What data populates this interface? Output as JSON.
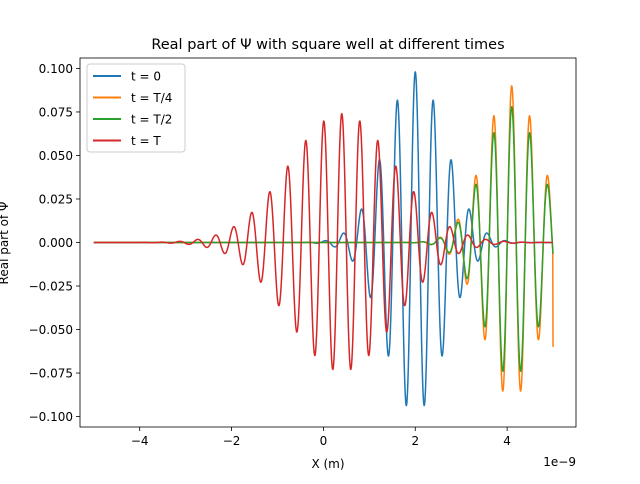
{
  "chart_data": {
    "type": "line",
    "title": "Real part of Ψ with square well at different times",
    "xlabel": "X (m)",
    "ylabel": "Real part of Ψ",
    "x_scale_label": "1e−9",
    "xlim": [
      -5.3e-09,
      5.5e-09
    ],
    "ylim": [
      -0.106,
      0.106
    ],
    "x_ticks": [
      -4e-09,
      -2e-09,
      0,
      2e-09,
      4e-09
    ],
    "x_tick_labels": [
      "−4",
      "−2",
      "0",
      "2",
      "4"
    ],
    "y_ticks": [
      -0.1,
      -0.075,
      -0.05,
      -0.025,
      0.0,
      0.025,
      0.05,
      0.075,
      0.1
    ],
    "y_tick_labels": [
      "−0.100",
      "−0.075",
      "−0.050",
      "−0.025",
      "0.000",
      "0.025",
      "0.050",
      "0.075",
      "0.100"
    ],
    "grid": false,
    "legend_position": "top-left",
    "x_range": [
      -5e-09,
      5e-09
    ],
    "series": [
      {
        "name": "t = 0",
        "color": "#1f77b4",
        "center": 2e-09,
        "amplitude": 0.098,
        "width": 6.5e-10,
        "wavenumber": 16000000000.0,
        "edge_value": 0.0
      },
      {
        "name": "t = T/4",
        "color": "#ff7f0e",
        "center": 4.1e-09,
        "amplitude": 0.09,
        "width": 6e-10,
        "wavenumber": 16000000000.0,
        "edge_value": -0.06
      },
      {
        "name": "t = T/2",
        "color": "#2ca02c",
        "center": 4.1e-09,
        "amplitude": 0.078,
        "width": 6e-10,
        "wavenumber": 16000000000.0,
        "edge_value": 0.0
      },
      {
        "name": "t = T",
        "color": "#d62728",
        "center": 4e-10,
        "amplitude": 0.074,
        "width": 1.15e-09,
        "wavenumber": 16000000000.0,
        "edge_value": 0.0
      }
    ]
  }
}
